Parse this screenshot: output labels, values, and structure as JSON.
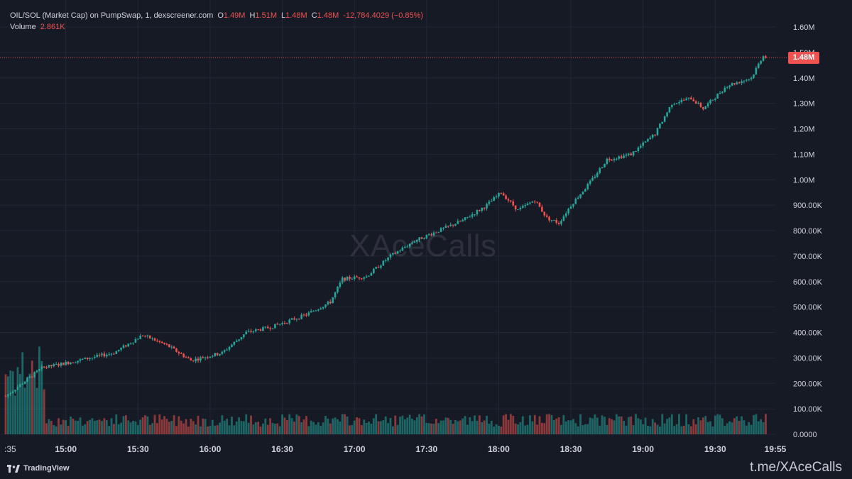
{
  "colors": {
    "background": "#161a25",
    "grid": "#232734",
    "up": "#26a69a",
    "down": "#ef5350",
    "text": "#d1d4dc"
  },
  "header": {
    "symbol": "OIL/SOL (Market Cap) on PumpSwap, 1, dexscreener.com",
    "open_key": "O",
    "open_value": "1.49M",
    "high_key": "H",
    "high_value": "1.51M",
    "low_key": "L",
    "low_value": "1.48M",
    "close_key": "C",
    "close_value": "1.48M",
    "change": "-12,784.4029 (−0.85%)",
    "volume_label": "Volume",
    "volume_value": "2.861K"
  },
  "footer": {
    "logo_text": "TradingView",
    "handle": "t.me/XAceCalls"
  },
  "watermark": "XAceCalls",
  "chart_data": {
    "type": "candlestick",
    "title": "OIL/SOL (Market Cap) on PumpSwap, 1, dexscreener.com",
    "interval": "1",
    "x_ticks": [
      ":35",
      "15:00",
      "15:30",
      "16:00",
      "16:30",
      "17:00",
      "17:30",
      "18:00",
      "18:30",
      "19:00",
      "19:30",
      "19:55"
    ],
    "y_ticks": [
      "1.60M",
      "1.50M",
      "1.40M",
      "1.30M",
      "1.20M",
      "1.10M",
      "1.00M",
      "900.00K",
      "800.00K",
      "700.00K",
      "600.00K",
      "500.00K",
      "400.00K",
      "300.00K",
      "200.00K",
      "100.00K",
      "0.0000"
    ],
    "y_range": [
      0,
      1600000
    ],
    "time_range": [
      "14:35",
      "19:55"
    ],
    "last_price_label": "1.48M",
    "last_price": 1480000,
    "grid": true,
    "price_anchors": [
      {
        "t": "14:35",
        "v": 150000
      },
      {
        "t": "14:50",
        "v": 260000
      },
      {
        "t": "15:05",
        "v": 290000
      },
      {
        "t": "15:20",
        "v": 320000
      },
      {
        "t": "15:32",
        "v": 390000
      },
      {
        "t": "15:42",
        "v": 350000
      },
      {
        "t": "15:52",
        "v": 290000
      },
      {
        "t": "16:05",
        "v": 320000
      },
      {
        "t": "16:15",
        "v": 400000
      },
      {
        "t": "16:25",
        "v": 420000
      },
      {
        "t": "16:40",
        "v": 470000
      },
      {
        "t": "16:50",
        "v": 520000
      },
      {
        "t": "16:55",
        "v": 610000
      },
      {
        "t": "17:05",
        "v": 620000
      },
      {
        "t": "17:15",
        "v": 700000
      },
      {
        "t": "17:25",
        "v": 760000
      },
      {
        "t": "17:35",
        "v": 800000
      },
      {
        "t": "17:45",
        "v": 840000
      },
      {
        "t": "17:55",
        "v": 900000
      },
      {
        "t": "18:01",
        "v": 950000
      },
      {
        "t": "18:08",
        "v": 880000
      },
      {
        "t": "18:15",
        "v": 920000
      },
      {
        "t": "18:20",
        "v": 850000
      },
      {
        "t": "18:25",
        "v": 830000
      },
      {
        "t": "18:30",
        "v": 900000
      },
      {
        "t": "18:38",
        "v": 990000
      },
      {
        "t": "18:45",
        "v": 1080000
      },
      {
        "t": "18:55",
        "v": 1100000
      },
      {
        "t": "19:05",
        "v": 1180000
      },
      {
        "t": "19:12",
        "v": 1300000
      },
      {
        "t": "19:20",
        "v": 1320000
      },
      {
        "t": "19:25",
        "v": 1280000
      },
      {
        "t": "19:35",
        "v": 1370000
      },
      {
        "t": "19:45",
        "v": 1400000
      },
      {
        "t": "19:50",
        "v": 1490000
      },
      {
        "t": "19:51",
        "v": 1480000
      }
    ],
    "volume_note": "per-minute volume histogram bars, colored by candle direction"
  }
}
